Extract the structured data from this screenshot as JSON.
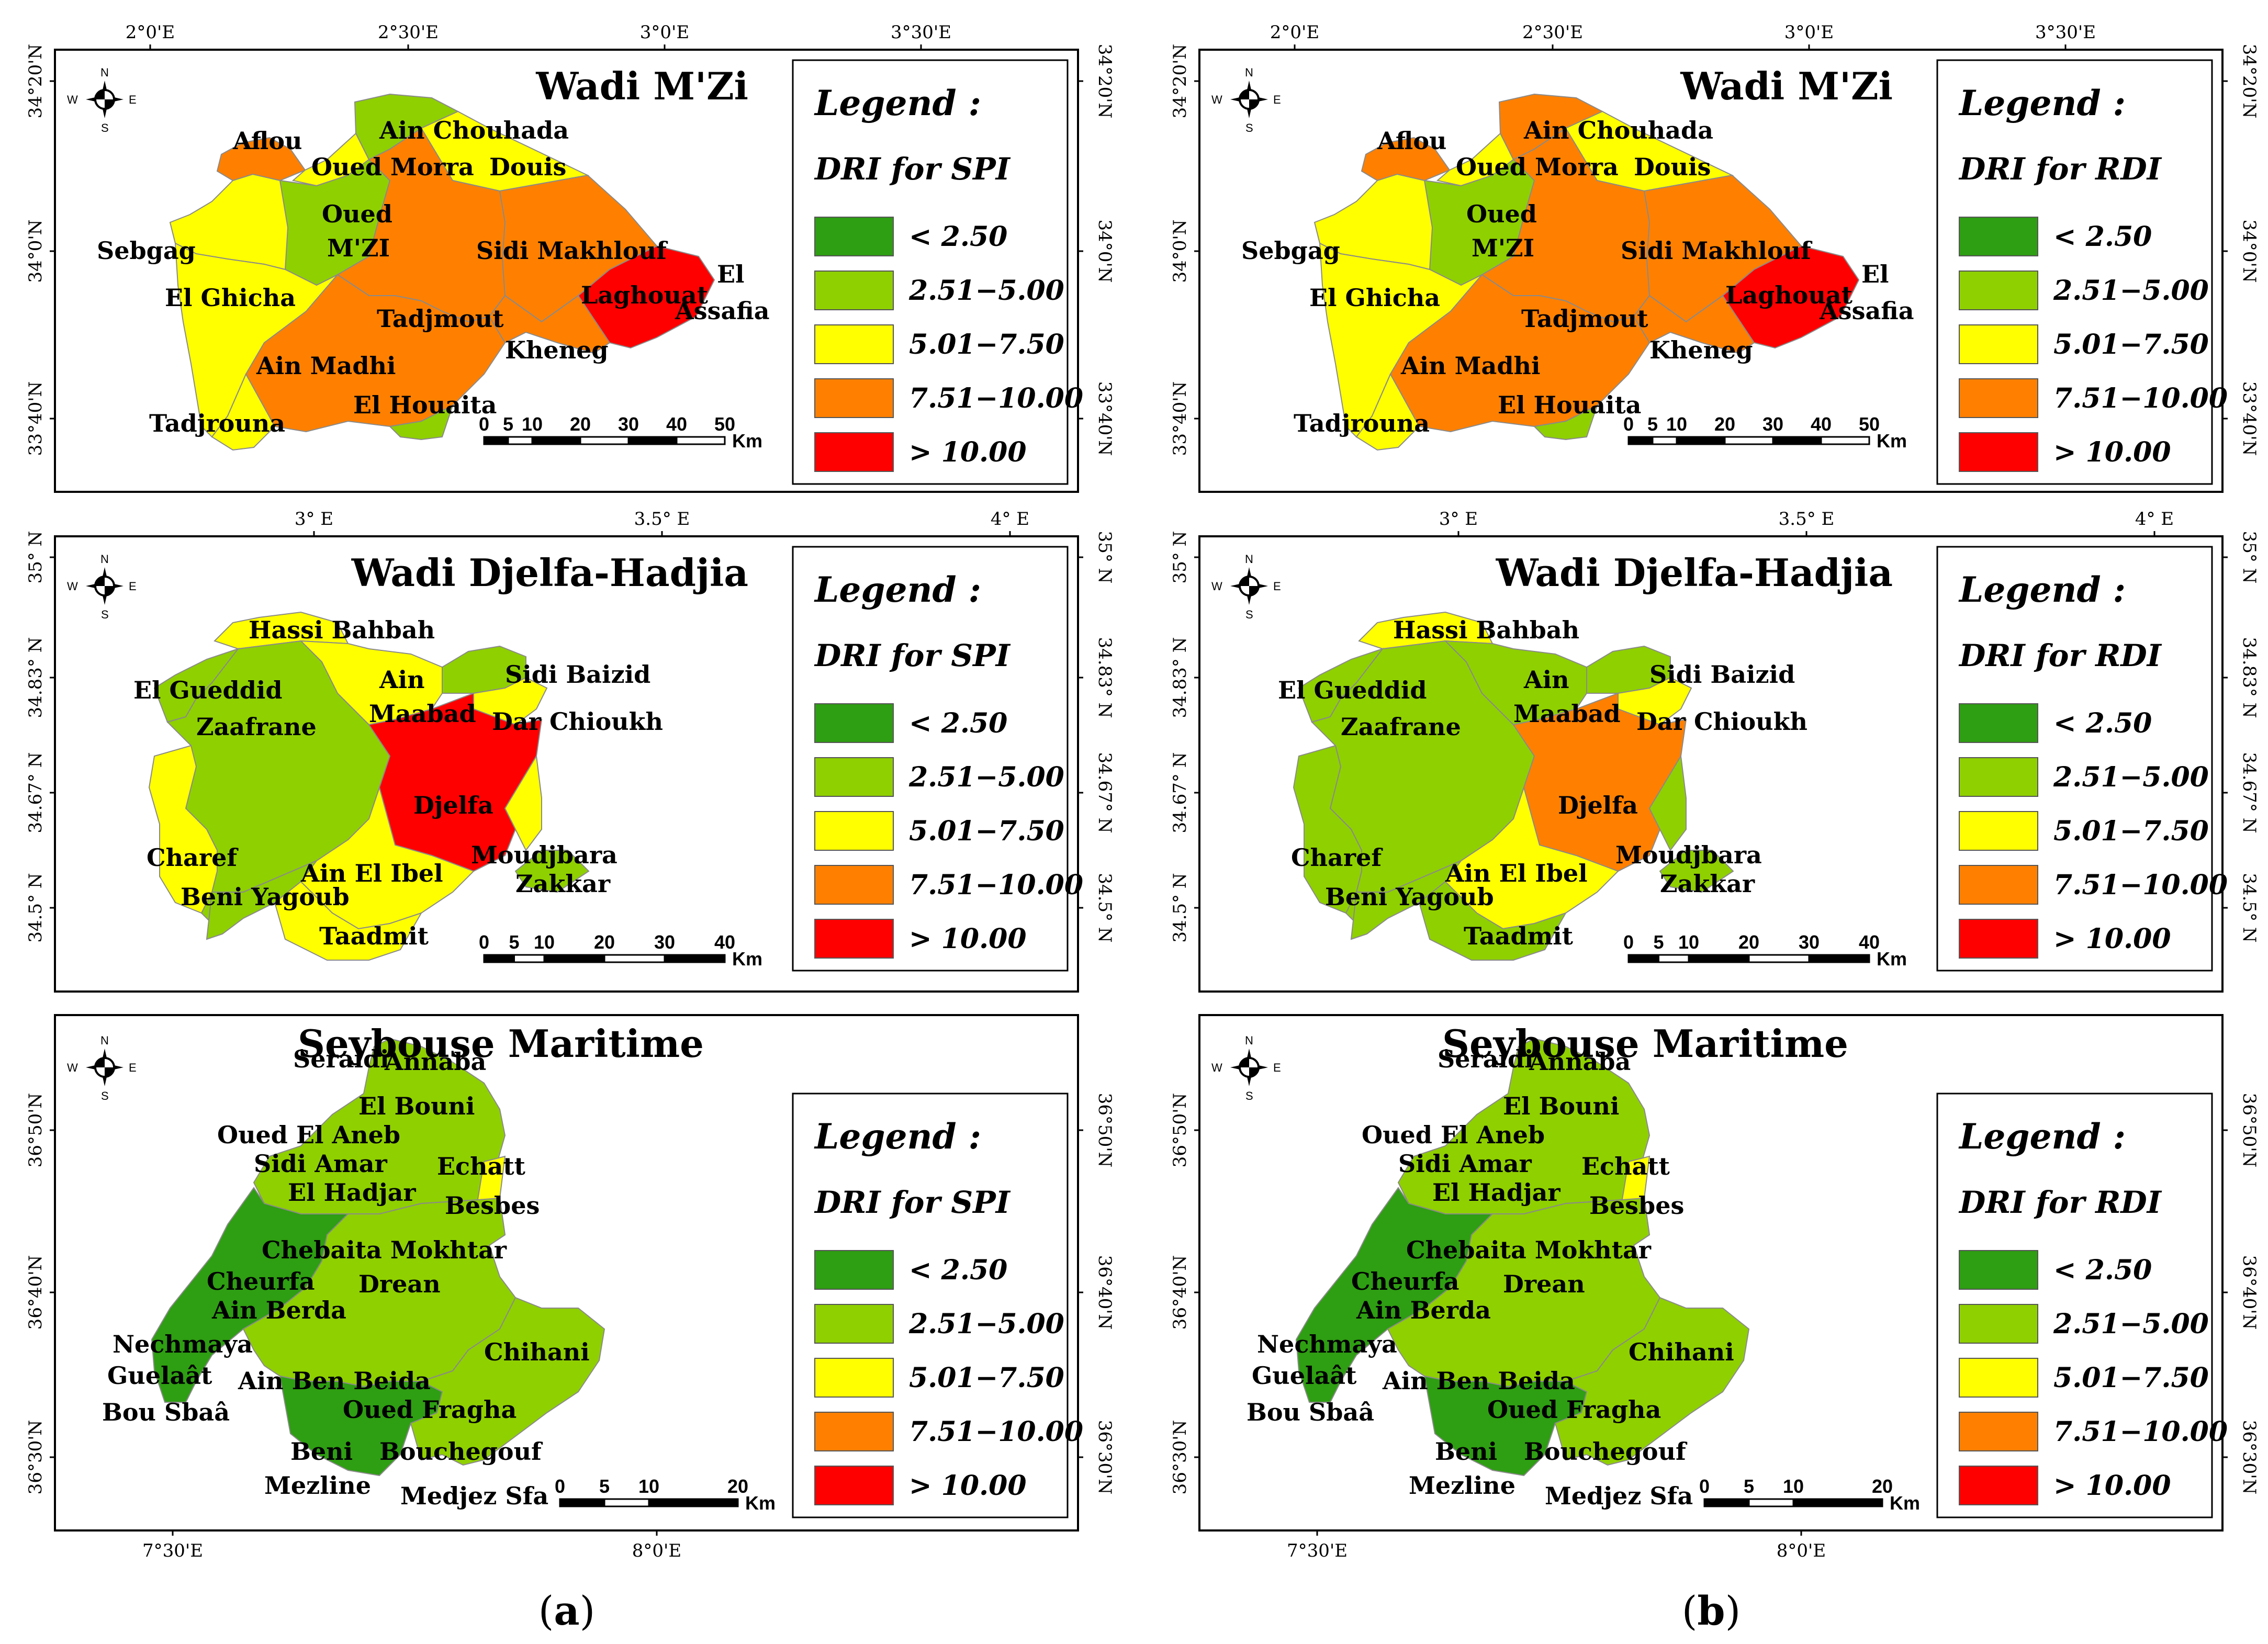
{
  "colors": {
    "c1": "#2e9e12",
    "c2": "#8fd000",
    "c3": "#ffff00",
    "c4": "#ff8000",
    "c5": "#ff0000"
  },
  "legend": {
    "title": "Legend :",
    "classes": [
      "< 2.50",
      "2.51−5.00",
      "5.01−7.50",
      "7.51−10.00",
      "> 10.00"
    ]
  },
  "panel_labels": {
    "a": "a",
    "b": "b"
  },
  "columns": [
    {
      "index_name": "DRI for SPI",
      "maps": [
        {
          "title": "Wadi M'Zi",
          "ticks_top": [
            "2°0'E",
            "2°30'E",
            "3°0'E",
            "3°30'E"
          ],
          "ticks_left": [
            "34°20'N",
            "34°0'N",
            "33°40'N"
          ],
          "ticks_right": [
            "34°20'N",
            "34°0'N",
            "33°40'N"
          ],
          "scale_labels": [
            "0",
            "5",
            "10",
            "20",
            "30",
            "40",
            "50"
          ],
          "scale_unit": "Km",
          "places": [
            "Aflou",
            "Ain Chouhada",
            "Oued Morra",
            "Douis",
            "Oued",
            "M'ZI",
            "Sebgag",
            "Sidi Makhlouf",
            "El Ghicha",
            "Tadjmout",
            "Laghouat",
            "El",
            "Assafia",
            "Kheneg",
            "Ain Madhi",
            "El Houaita",
            "Tadjrouna"
          ],
          "region_classes": {
            "mzi_aflou": 4,
            "mzi_chouhada": 2,
            "mzi_morra": 3,
            "mzi_douis": 3,
            "mzi_oued": 2,
            "mzi_sebgag": 3,
            "mzi_ghicha": 3,
            "mzi_tadjmout": 4,
            "mzi_sidi": 4,
            "mzi_laghouat": 5,
            "mzi_kheneg": 4,
            "mzi_madhi": 4,
            "mzi_houaita": 2,
            "mzi_tadjrouna": 3
          }
        },
        {
          "title": "Wadi Djelfa-Hadjia",
          "ticks_top": [
            "3° E",
            "3.5° E",
            "4° E"
          ],
          "ticks_left": [
            "35° N",
            "34.83° N",
            "34.67° N",
            "34.5° N"
          ],
          "ticks_right": [
            "35° N",
            "34.83° N",
            "34.67° N",
            "34.5° N"
          ],
          "scale_labels": [
            "0",
            "5",
            "10",
            "20",
            "30",
            "40"
          ],
          "scale_unit": "Km",
          "places": [
            "Hassi Bahbah",
            "Sidi Baizid",
            "Ain",
            "Maabad",
            "El Gueddid",
            "Dar Chioukh",
            "Zaafrane",
            "Djelfa",
            "Charef",
            "Moudjbara",
            "Ain El Ibel",
            "Zakkar",
            "Beni Yagoub",
            "Taadmit"
          ],
          "region_classes": {
            "dj_hassi": 3,
            "dj_gueddid": 2,
            "dj_zaafrane": 2,
            "dj_maabad": 3,
            "dj_sidi": 2,
            "dj_chioukh": 3,
            "dj_djelfa": 5,
            "dj_charef": 3,
            "dj_beni": 2,
            "dj_ibel": 3,
            "dj_taadmit": 3,
            "dj_moudj": 3,
            "dj_zakkar": 2
          }
        },
        {
          "title": "Seybouse Maritime",
          "ticks_bottom": [
            "7°30'E",
            "8°0'E"
          ],
          "ticks_left": [
            "36°50'N",
            "36°40'N",
            "36°30'N"
          ],
          "ticks_right": [
            "36°50'N",
            "36°40'N",
            "36°30'N"
          ],
          "scale_labels": [
            "0",
            "5",
            "10",
            "20"
          ],
          "scale_unit": "Km",
          "places": [
            "Seraidi",
            "Annaba",
            "El Bouni",
            "Oued El Aneb",
            "Sidi Amar",
            "Echatt",
            "El Hadjar",
            "Besbes",
            "Chebaita Mokhtar",
            "Cheurfa",
            "Drean",
            "Ain Berda",
            "Nechmaya",
            "Chihani",
            "Guelaât",
            "Ain Ben Beida",
            "Bou Sbaâ",
            "Oued Fragha",
            "Beni",
            "Bouchegouf",
            "Mezline",
            "Medjez Sfa"
          ],
          "region_classes": {
            "sey_north": 2,
            "sey_west": 1,
            "sey_besbes": 3,
            "sey_center": 2,
            "sey_south": 1,
            "sey_east": 2
          }
        }
      ]
    },
    {
      "index_name": "DRI for RDI",
      "maps": [
        {
          "title": "Wadi M'Zi",
          "ticks_top": [
            "2°0'E",
            "2°30'E",
            "3°0'E",
            "3°30'E"
          ],
          "ticks_left": [
            "34°20'N",
            "34°0'N",
            "33°40'N"
          ],
          "ticks_right": [
            "34°20'N",
            "34°0'N",
            "33°40'N"
          ],
          "scale_labels": [
            "0",
            "5",
            "10",
            "20",
            "30",
            "40",
            "50"
          ],
          "scale_unit": "Km",
          "places": [
            "Aflou",
            "Ain Chouhada",
            "Oued Morra",
            "Douis",
            "Oued",
            "M'ZI",
            "Sebgag",
            "Sidi Makhlouf",
            "El Ghicha",
            "Tadjmout",
            "Laghouat",
            "El",
            "Assafia",
            "Kheneg",
            "Ain Madhi",
            "El Houaita",
            "Tadjrouna"
          ],
          "region_classes": {
            "mzi_aflou": 4,
            "mzi_chouhada": 4,
            "mzi_morra": 3,
            "mzi_douis": 3,
            "mzi_oued": 2,
            "mzi_sebgag": 3,
            "mzi_ghicha": 3,
            "mzi_tadjmout": 4,
            "mzi_sidi": 4,
            "mzi_laghouat": 5,
            "mzi_kheneg": 4,
            "mzi_madhi": 4,
            "mzi_houaita": 2,
            "mzi_tadjrouna": 3
          }
        },
        {
          "title": "Wadi Djelfa-Hadjia",
          "ticks_top": [
            "3° E",
            "3.5° E",
            "4° E"
          ],
          "ticks_left": [
            "35° N",
            "34.83° N",
            "34.67° N",
            "34.5° N"
          ],
          "ticks_right": [
            "35° N",
            "34.83° N",
            "34.67° N",
            "34.5° N"
          ],
          "scale_labels": [
            "0",
            "5",
            "10",
            "20",
            "30",
            "40"
          ],
          "scale_unit": "Km",
          "places": [
            "Hassi Bahbah",
            "Sidi Baizid",
            "Ain",
            "Maabad",
            "El Gueddid",
            "Dar Chioukh",
            "Zaafrane",
            "Djelfa",
            "Charef",
            "Moudjbara",
            "Ain El Ibel",
            "Zakkar",
            "Beni Yagoub",
            "Taadmit"
          ],
          "region_classes": {
            "dj_hassi": 3,
            "dj_gueddid": 2,
            "dj_zaafrane": 2,
            "dj_maabad": 2,
            "dj_sidi": 2,
            "dj_chioukh": 3,
            "dj_djelfa": 4,
            "dj_charef": 2,
            "dj_beni": 2,
            "dj_ibel": 3,
            "dj_taadmit": 2,
            "dj_moudj": 2,
            "dj_zakkar": 2
          }
        },
        {
          "title": "Seybouse Maritime",
          "ticks_bottom": [
            "7°30'E",
            "8°0'E"
          ],
          "ticks_left": [
            "36°50'N",
            "36°40'N",
            "36°30'N"
          ],
          "ticks_right": [
            "36°50'N",
            "36°40'N",
            "36°30'N"
          ],
          "scale_labels": [
            "0",
            "5",
            "10",
            "20"
          ],
          "scale_unit": "Km",
          "places": [
            "Seraidi",
            "Annaba",
            "El Bouni",
            "Oued El Aneb",
            "Sidi Amar",
            "Echatt",
            "El Hadjar",
            "Besbes",
            "Chebaita Mokhtar",
            "Cheurfa",
            "Drean",
            "Ain Berda",
            "Nechmaya",
            "Chihani",
            "Guelaât",
            "Ain Ben Beida",
            "Bou Sbaâ",
            "Oued Fragha",
            "Beni",
            "Bouchegouf",
            "Mezline",
            "Medjez Sfa"
          ],
          "region_classes": {
            "sey_north": 2,
            "sey_west": 1,
            "sey_besbes": 3,
            "sey_center": 2,
            "sey_south": 1,
            "sey_east": 2
          }
        }
      ]
    }
  ],
  "compass": {
    "n": "N",
    "s": "S",
    "e": "E",
    "w": "W"
  }
}
